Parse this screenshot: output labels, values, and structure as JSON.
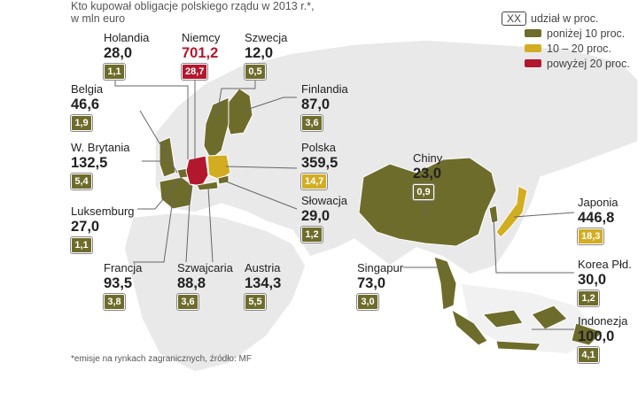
{
  "title": "Kto kupował obligacje polskiego rządu w 2013 r.*,",
  "subtitle": "w mln euro",
  "colors": {
    "below10": "#6e6c2b",
    "10to20": "#d2ad22",
    "above20": "#b3172e",
    "land": "#e9e9e9"
  },
  "legend": {
    "box": "XX",
    "box_label": "udział w proc.",
    "items": [
      {
        "label": "poniżej 10 proc.",
        "color": "#6e6c2b"
      },
      {
        "label": "10 – 20 proc.",
        "color": "#d2ad22"
      },
      {
        "label": "powyżej 20 proc.",
        "color": "#b3172e"
      }
    ]
  },
  "countries": [
    {
      "name": "Holandia",
      "value": "28,0",
      "share": "1,1",
      "cat": "below10"
    },
    {
      "name": "Niemcy",
      "value": "701,2",
      "share": "28,7",
      "cat": "above20"
    },
    {
      "name": "Szwecja",
      "value": "12,0",
      "share": "0,5",
      "cat": "below10"
    },
    {
      "name": "Belgia",
      "value": "46,6",
      "share": "1,9",
      "cat": "below10"
    },
    {
      "name": "Finlandia",
      "value": "87,0",
      "share": "3,6",
      "cat": "below10"
    },
    {
      "name": "W. Brytania",
      "value": "132,5",
      "share": "5,4",
      "cat": "below10"
    },
    {
      "name": "Polska",
      "value": "359,5",
      "share": "14,7",
      "cat": "10to20"
    },
    {
      "name": "Chiny",
      "value": "23,0",
      "share": "0,9",
      "cat": "below10"
    },
    {
      "name": "Słowacja",
      "value": "29,0",
      "share": "1,2",
      "cat": "below10"
    },
    {
      "name": "Japonia",
      "value": "446,8",
      "share": "18,3",
      "cat": "10to20"
    },
    {
      "name": "Luksemburg",
      "value": "27,0",
      "share": "1,1",
      "cat": "below10"
    },
    {
      "name": "Korea Płd.",
      "value": "30,0",
      "share": "1,2",
      "cat": "below10"
    },
    {
      "name": "Francja",
      "value": "93,5",
      "share": "3,8",
      "cat": "below10"
    },
    {
      "name": "Szwajcaria",
      "value": "88,8",
      "share": "3,6",
      "cat": "below10"
    },
    {
      "name": "Austria",
      "value": "134,3",
      "share": "5,5",
      "cat": "below10"
    },
    {
      "name": "Singapur",
      "value": "73,0",
      "share": "3,0",
      "cat": "below10"
    },
    {
      "name": "Indonezja",
      "value": "100,0",
      "share": "4,1",
      "cat": "below10"
    }
  ],
  "footnote": "*emisje na rynkach zagranicznych, źródło: MF"
}
